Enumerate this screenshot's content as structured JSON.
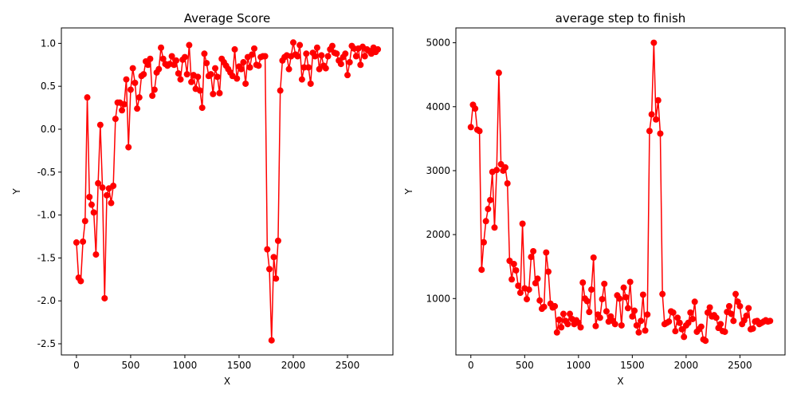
{
  "chart_data": [
    {
      "type": "line",
      "title": "Average Score",
      "x_label": "X",
      "y_label": "Y",
      "x": [
        0,
        20,
        40,
        60,
        80,
        100,
        120,
        140,
        160,
        180,
        200,
        220,
        240,
        260,
        280,
        300,
        320,
        340,
        360,
        380,
        400,
        420,
        440,
        460,
        480,
        500,
        520,
        540,
        560,
        580,
        600,
        620,
        640,
        660,
        680,
        700,
        720,
        740,
        760,
        780,
        800,
        820,
        840,
        860,
        880,
        900,
        920,
        940,
        960,
        980,
        1000,
        1020,
        1040,
        1060,
        1080,
        1100,
        1120,
        1140,
        1160,
        1180,
        1200,
        1220,
        1240,
        1260,
        1280,
        1300,
        1320,
        1340,
        1360,
        1380,
        1400,
        1420,
        1440,
        1460,
        1480,
        1500,
        1520,
        1540,
        1560,
        1580,
        1600,
        1620,
        1640,
        1660,
        1680,
        1700,
        1720,
        1740,
        1760,
        1780,
        1800,
        1820,
        1840,
        1860,
        1880,
        1900,
        1920,
        1940,
        1960,
        1980,
        2000,
        2020,
        2040,
        2060,
        2080,
        2100,
        2120,
        2140,
        2160,
        2180,
        2200,
        2220,
        2240,
        2260,
        2280,
        2300,
        2320,
        2340,
        2360,
        2380,
        2400,
        2420,
        2440,
        2460,
        2480,
        2500,
        2520,
        2540,
        2560,
        2580,
        2600,
        2620,
        2640,
        2660,
        2680,
        2700,
        2720,
        2740,
        2760,
        2780
      ],
      "series": [
        {
          "color": "#ff0000",
          "values": [
            -1.32,
            -1.73,
            -1.77,
            -1.31,
            -1.07,
            0.37,
            -0.79,
            -0.88,
            -0.97,
            -1.46,
            -0.63,
            0.05,
            -0.68,
            -1.97,
            -0.77,
            -0.69,
            -0.86,
            -0.66,
            0.12,
            0.31,
            0.31,
            0.22,
            0.29,
            0.58,
            -0.21,
            0.46,
            0.71,
            0.54,
            0.24,
            0.37,
            0.62,
            0.64,
            0.79,
            0.75,
            0.82,
            0.39,
            0.46,
            0.66,
            0.7,
            0.95,
            0.82,
            0.76,
            0.74,
            0.76,
            0.85,
            0.75,
            0.8,
            0.65,
            0.58,
            0.81,
            0.84,
            0.64,
            0.98,
            0.55,
            0.63,
            0.47,
            0.61,
            0.45,
            0.25,
            0.88,
            0.77,
            0.62,
            0.64,
            0.41,
            0.71,
            0.61,
            0.42,
            0.82,
            0.78,
            0.74,
            0.7,
            0.66,
            0.62,
            0.93,
            0.59,
            0.73,
            0.7,
            0.78,
            0.53,
            0.84,
            0.72,
            0.87,
            0.94,
            0.75,
            0.74,
            0.84,
            0.85,
            0.85,
            -1.4,
            -1.63,
            -2.46,
            -1.49,
            -1.74,
            -1.3,
            0.45,
            0.8,
            0.84,
            0.86,
            0.7,
            0.85,
            1.01,
            0.87,
            0.85,
            0.98,
            0.58,
            0.72,
            0.88,
            0.72,
            0.53,
            0.89,
            0.85,
            0.95,
            0.7,
            0.86,
            0.74,
            0.71,
            0.85,
            0.93,
            0.97,
            0.89,
            0.88,
            0.8,
            0.76,
            0.84,
            0.88,
            0.63,
            0.78,
            0.97,
            0.94,
            0.85,
            0.94,
            0.75,
            0.96,
            0.85,
            0.93,
            0.91,
            0.88,
            0.95,
            0.9,
            0.93
          ]
        }
      ],
      "xlim": [
        -139,
        2919
      ],
      "xticks": [
        0,
        500,
        1000,
        1500,
        2000,
        2500
      ],
      "ylim": [
        -2.63,
        1.18
      ],
      "yticks": [
        -2.5,
        {
          "value": -2,
          "label": "-2.0"
        },
        -1.5,
        {
          "value": -1,
          "label": "-1.0"
        },
        -0.5,
        {
          "value": 0,
          "label": "0.0"
        },
        0.5,
        {
          "value": 1,
          "label": "1.0"
        }
      ]
    },
    {
      "type": "line",
      "title": "average step to finish",
      "x_label": "X",
      "y_label": "Y",
      "x": [
        0,
        20,
        40,
        60,
        80,
        100,
        120,
        140,
        160,
        180,
        200,
        220,
        240,
        260,
        280,
        300,
        320,
        340,
        360,
        380,
        400,
        420,
        440,
        460,
        480,
        500,
        520,
        540,
        560,
        580,
        600,
        620,
        640,
        660,
        680,
        700,
        720,
        740,
        760,
        780,
        800,
        820,
        840,
        860,
        880,
        900,
        920,
        940,
        960,
        980,
        1000,
        1020,
        1040,
        1060,
        1080,
        1100,
        1120,
        1140,
        1160,
        1180,
        1200,
        1220,
        1240,
        1260,
        1280,
        1300,
        1320,
        1340,
        1360,
        1380,
        1400,
        1420,
        1440,
        1460,
        1480,
        1500,
        1520,
        1540,
        1560,
        1580,
        1600,
        1620,
        1640,
        1660,
        1680,
        1700,
        1720,
        1740,
        1760,
        1780,
        1800,
        1820,
        1840,
        1860,
        1880,
        1900,
        1920,
        1940,
        1960,
        1980,
        2000,
        2020,
        2040,
        2060,
        2080,
        2100,
        2120,
        2140,
        2160,
        2180,
        2200,
        2220,
        2240,
        2260,
        2280,
        2300,
        2320,
        2340,
        2360,
        2380,
        2400,
        2420,
        2440,
        2460,
        2480,
        2500,
        2520,
        2540,
        2560,
        2580,
        2600,
        2620,
        2640,
        2660,
        2680,
        2700,
        2720,
        2740,
        2760,
        2780
      ],
      "series": [
        {
          "color": "#ff0000",
          "values": [
            3680,
            4030,
            3970,
            3640,
            3620,
            1450,
            1880,
            2210,
            2400,
            2540,
            2980,
            2110,
            3010,
            4530,
            3100,
            3000,
            3050,
            2800,
            1590,
            1300,
            1540,
            1440,
            1200,
            1090,
            2170,
            1160,
            990,
            1140,
            1650,
            1740,
            1240,
            1310,
            970,
            840,
            870,
            1720,
            1420,
            920,
            860,
            880,
            470,
            670,
            550,
            760,
            650,
            600,
            760,
            680,
            600,
            660,
            620,
            550,
            1250,
            1000,
            960,
            790,
            1140,
            1640,
            570,
            750,
            700,
            990,
            1230,
            800,
            640,
            720,
            650,
            600,
            1050,
            1000,
            580,
            1170,
            1020,
            850,
            1260,
            720,
            810,
            580,
            470,
            650,
            1060,
            500,
            750,
            3620,
            3880,
            5000,
            3800,
            4100,
            3580,
            1070,
            600,
            620,
            640,
            800,
            780,
            490,
            700,
            620,
            520,
            400,
            580,
            620,
            780,
            680,
            950,
            480,
            520,
            560,
            360,
            340,
            780,
            860,
            720,
            740,
            700,
            540,
            600,
            490,
            480,
            790,
            880,
            760,
            650,
            1070,
            950,
            880,
            600,
            660,
            730,
            850,
            520,
            530,
            640,
            650,
            600,
            620,
            640,
            660,
            640,
            650
          ]
        }
      ],
      "xlim": [
        -139,
        2919
      ],
      "xticks": [
        0,
        500,
        1000,
        1500,
        2000,
        2500
      ],
      "ylim": [
        118,
        5232
      ],
      "yticks": [
        1000,
        2000,
        3000,
        4000,
        5000
      ]
    }
  ]
}
